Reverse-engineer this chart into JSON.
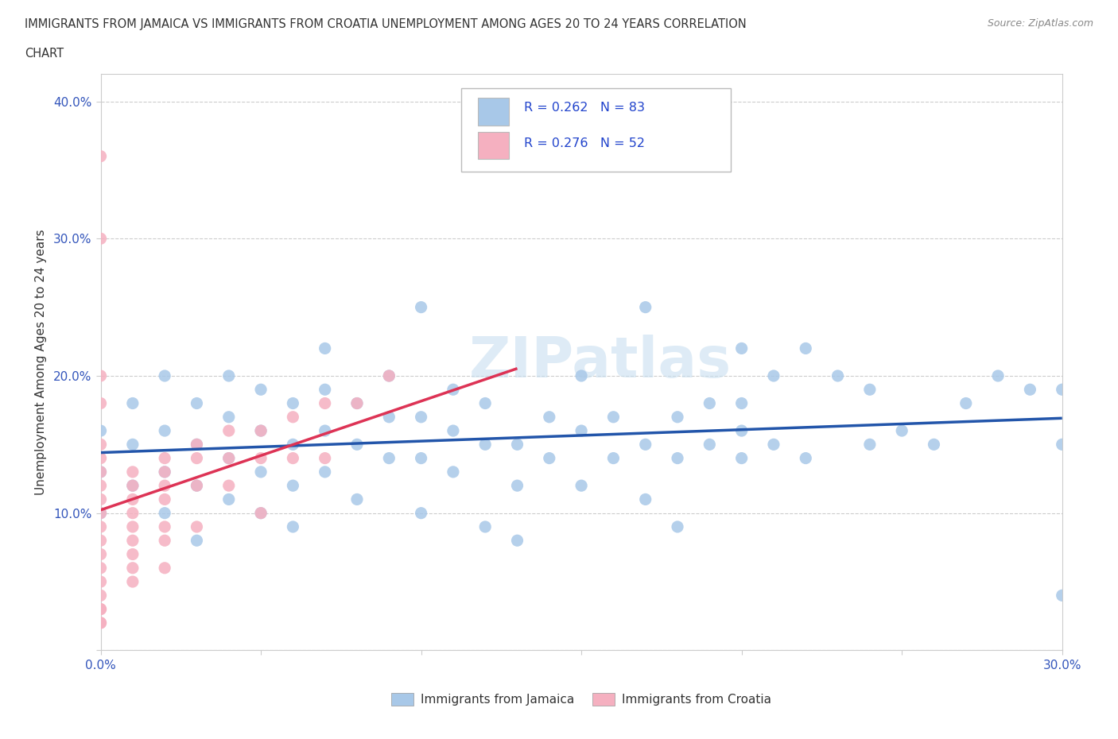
{
  "title_line1": "IMMIGRANTS FROM JAMAICA VS IMMIGRANTS FROM CROATIA UNEMPLOYMENT AMONG AGES 20 TO 24 YEARS CORRELATION",
  "title_line2": "CHART",
  "source": "Source: ZipAtlas.com",
  "ylabel": "Unemployment Among Ages 20 to 24 years",
  "xlim": [
    0.0,
    0.3
  ],
  "ylim": [
    0.0,
    0.42
  ],
  "xticks": [
    0.0,
    0.05,
    0.1,
    0.15,
    0.2,
    0.25,
    0.3
  ],
  "yticks": [
    0.0,
    0.1,
    0.2,
    0.3,
    0.4
  ],
  "jamaica_color": "#a8c8e8",
  "croatia_color": "#f5b0c0",
  "jamaica_line_color": "#2255aa",
  "croatia_line_color": "#dd3355",
  "legend_color": "#2244cc",
  "watermark_text": "ZIPatlas",
  "jamaica_x": [
    0.0,
    0.0,
    0.0,
    0.01,
    0.01,
    0.01,
    0.02,
    0.02,
    0.02,
    0.02,
    0.03,
    0.03,
    0.03,
    0.03,
    0.04,
    0.04,
    0.04,
    0.04,
    0.05,
    0.05,
    0.05,
    0.05,
    0.06,
    0.06,
    0.06,
    0.06,
    0.07,
    0.07,
    0.07,
    0.07,
    0.08,
    0.08,
    0.08,
    0.09,
    0.09,
    0.09,
    0.1,
    0.1,
    0.1,
    0.1,
    0.11,
    0.11,
    0.11,
    0.12,
    0.12,
    0.12,
    0.13,
    0.13,
    0.13,
    0.14,
    0.14,
    0.15,
    0.15,
    0.15,
    0.16,
    0.16,
    0.17,
    0.17,
    0.17,
    0.18,
    0.18,
    0.18,
    0.19,
    0.19,
    0.2,
    0.2,
    0.2,
    0.2,
    0.21,
    0.21,
    0.22,
    0.22,
    0.23,
    0.24,
    0.24,
    0.25,
    0.26,
    0.27,
    0.28,
    0.29,
    0.3,
    0.3,
    0.3
  ],
  "jamaica_y": [
    0.13,
    0.16,
    0.1,
    0.12,
    0.15,
    0.18,
    0.1,
    0.13,
    0.16,
    0.2,
    0.12,
    0.15,
    0.18,
    0.08,
    0.11,
    0.14,
    0.17,
    0.2,
    0.1,
    0.13,
    0.16,
    0.19,
    0.12,
    0.15,
    0.18,
    0.09,
    0.13,
    0.16,
    0.19,
    0.22,
    0.11,
    0.15,
    0.18,
    0.14,
    0.17,
    0.2,
    0.1,
    0.14,
    0.17,
    0.25,
    0.13,
    0.16,
    0.19,
    0.09,
    0.15,
    0.18,
    0.12,
    0.15,
    0.08,
    0.14,
    0.17,
    0.12,
    0.16,
    0.2,
    0.14,
    0.17,
    0.11,
    0.15,
    0.25,
    0.14,
    0.17,
    0.09,
    0.15,
    0.18,
    0.14,
    0.18,
    0.22,
    0.16,
    0.15,
    0.2,
    0.14,
    0.22,
    0.2,
    0.15,
    0.19,
    0.16,
    0.15,
    0.18,
    0.2,
    0.19,
    0.19,
    0.04,
    0.15
  ],
  "croatia_x": [
    0.0,
    0.0,
    0.0,
    0.0,
    0.0,
    0.0,
    0.0,
    0.0,
    0.0,
    0.0,
    0.0,
    0.0,
    0.0,
    0.0,
    0.0,
    0.0,
    0.0,
    0.0,
    0.0,
    0.0,
    0.01,
    0.01,
    0.01,
    0.01,
    0.01,
    0.01,
    0.01,
    0.01,
    0.01,
    0.02,
    0.02,
    0.02,
    0.02,
    0.02,
    0.02,
    0.02,
    0.03,
    0.03,
    0.03,
    0.03,
    0.04,
    0.04,
    0.04,
    0.05,
    0.05,
    0.05,
    0.06,
    0.06,
    0.07,
    0.07,
    0.08,
    0.09
  ],
  "croatia_y": [
    0.36,
    0.3,
    0.2,
    0.18,
    0.15,
    0.14,
    0.13,
    0.12,
    0.11,
    0.1,
    0.09,
    0.08,
    0.07,
    0.06,
    0.05,
    0.04,
    0.03,
    0.03,
    0.02,
    0.02,
    0.13,
    0.12,
    0.11,
    0.1,
    0.09,
    0.08,
    0.07,
    0.06,
    0.05,
    0.14,
    0.13,
    0.12,
    0.11,
    0.09,
    0.08,
    0.06,
    0.15,
    0.14,
    0.12,
    0.09,
    0.16,
    0.14,
    0.12,
    0.16,
    0.14,
    0.1,
    0.17,
    0.14,
    0.18,
    0.14,
    0.18,
    0.2
  ]
}
